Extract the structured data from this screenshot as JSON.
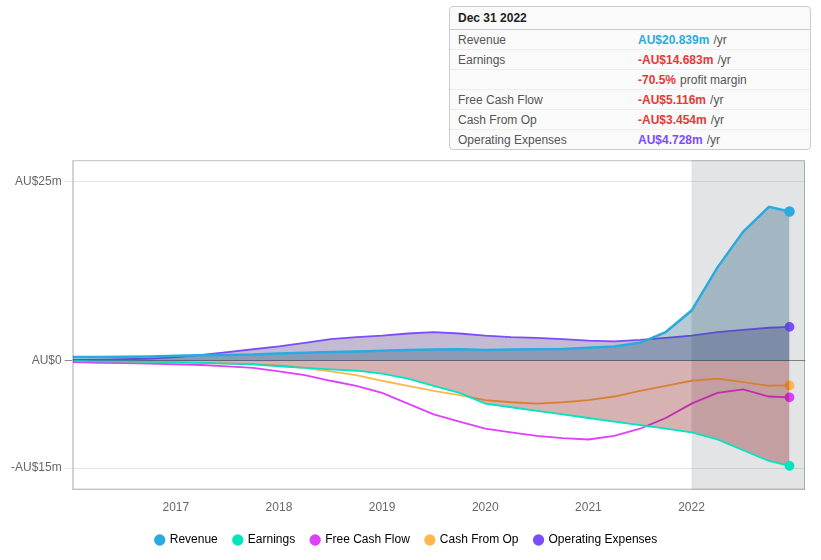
{
  "chart_data": {
    "type": "line",
    "x": [
      2016.0,
      2016.25,
      2016.5,
      2016.75,
      2017.0,
      2017.25,
      2017.5,
      2017.75,
      2018.0,
      2018.25,
      2018.5,
      2018.75,
      2019.0,
      2019.25,
      2019.5,
      2019.75,
      2020.0,
      2020.25,
      2020.5,
      2020.75,
      2021.0,
      2021.25,
      2021.5,
      2021.75,
      2022.0,
      2022.25,
      2022.5,
      2022.75,
      2022.95
    ],
    "series": [
      {
        "name": "Revenue",
        "color": "#29abe2",
        "type": "area",
        "fill_color": "#0d4f6e",
        "marker": "circle",
        "values": [
          0.5,
          0.5,
          0.55,
          0.6,
          0.7,
          0.75,
          0.8,
          0.85,
          1.0,
          1.1,
          1.2,
          1.3,
          1.4,
          1.5,
          1.55,
          1.6,
          1.5,
          1.55,
          1.6,
          1.65,
          1.8,
          2.0,
          2.5,
          4.0,
          7.0,
          13.0,
          18.0,
          21.5,
          20.839
        ]
      },
      {
        "name": "Earnings",
        "color": "#00e5c0",
        "type": "area",
        "fill_color": "#7b0000",
        "marker": "circle",
        "values": [
          0.0,
          -0.1,
          -0.1,
          -0.15,
          -0.2,
          -0.3,
          -0.4,
          -0.5,
          -0.8,
          -1.0,
          -1.2,
          -1.4,
          -1.8,
          -2.5,
          -3.5,
          -4.5,
          -6.0,
          -6.5,
          -7.0,
          -7.5,
          -8.0,
          -8.5,
          -9.0,
          -9.5,
          -10.0,
          -11.0,
          -12.5,
          -14.0,
          -14.683
        ]
      },
      {
        "name": "Free Cash Flow",
        "color": "#e040fb",
        "type": "line",
        "marker": "circle",
        "values": [
          -0.2,
          -0.3,
          -0.35,
          -0.4,
          -0.5,
          -0.6,
          -0.8,
          -1.0,
          -1.5,
          -2.0,
          -2.8,
          -3.5,
          -4.5,
          -6.0,
          -7.5,
          -8.5,
          -9.5,
          -10.0,
          -10.5,
          -10.8,
          -11.0,
          -10.5,
          -9.5,
          -8.0,
          -6.0,
          -4.5,
          -4.0,
          -5.0,
          -5.116
        ]
      },
      {
        "name": "Cash From Op",
        "color": "#ffb74d",
        "type": "line",
        "marker": "circle",
        "values": [
          -0.1,
          -0.15,
          -0.2,
          -0.25,
          -0.3,
          -0.35,
          -0.4,
          -0.5,
          -0.7,
          -1.0,
          -1.5,
          -2.0,
          -2.8,
          -3.5,
          -4.2,
          -4.8,
          -5.5,
          -5.8,
          -6.0,
          -5.8,
          -5.5,
          -5.0,
          -4.2,
          -3.5,
          -2.8,
          -2.5,
          -3.0,
          -3.5,
          -3.454
        ]
      },
      {
        "name": "Operating Expenses",
        "color": "#7c4dff",
        "type": "area",
        "fill_color": "#3a1a6e",
        "marker": "circle",
        "values": [
          0.1,
          0.15,
          0.2,
          0.3,
          0.5,
          0.8,
          1.2,
          1.6,
          2.0,
          2.5,
          3.0,
          3.3,
          3.5,
          3.8,
          4.0,
          3.8,
          3.5,
          3.3,
          3.2,
          3.0,
          2.8,
          2.7,
          2.9,
          3.2,
          3.5,
          4.0,
          4.3,
          4.6,
          4.728
        ]
      }
    ],
    "xlim": [
      2016.0,
      2023.1
    ],
    "xticks": [
      2017,
      2018,
      2019,
      2020,
      2021,
      2022
    ],
    "ylim": [
      -18,
      28
    ],
    "yticks": [
      {
        "value": -15,
        "label": "-AU$15m"
      },
      {
        "value": 0,
        "label": "AU$0"
      },
      {
        "value": 25,
        "label": "AU$25m"
      }
    ],
    "grid": true,
    "legend": "bottom",
    "highlight": {
      "x_start": 2022.0,
      "x_end": 2023.1,
      "color": "#1a2535"
    },
    "info_box": {
      "title": "Dec 31 2022",
      "rows": [
        {
          "label": "Revenue",
          "value": "AU$20.839m",
          "color": "#29abe2",
          "suffix": "/yr"
        },
        {
          "label": "Earnings",
          "value": "-AU$14.683m",
          "color": "#e53935",
          "suffix": "/yr"
        },
        {
          "value": "-70.5%",
          "color": "#e53935",
          "suffix": "profit margin"
        },
        {
          "label": "Free Cash Flow",
          "value": "-AU$5.116m",
          "color": "#e53935",
          "suffix": "/yr"
        },
        {
          "label": "Cash From Op",
          "value": "-AU$3.454m",
          "color": "#e53935",
          "suffix": "/yr"
        },
        {
          "label": "Operating Expenses",
          "value": "AU$4.728m",
          "color": "#7c4dff",
          "suffix": "/yr"
        }
      ]
    }
  }
}
